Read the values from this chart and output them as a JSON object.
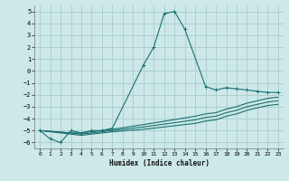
{
  "xlabel": "Humidex (Indice chaleur)",
  "bg_color": "#cce8e8",
  "grid_color": "#aacccc",
  "line_color": "#1a7070",
  "xlim": [
    -0.5,
    23.5
  ],
  "ylim": [
    -6.5,
    5.5
  ],
  "xticks": [
    0,
    1,
    2,
    3,
    4,
    5,
    6,
    7,
    8,
    9,
    10,
    11,
    12,
    13,
    14,
    15,
    16,
    17,
    18,
    19,
    20,
    21,
    22,
    23
  ],
  "yticks": [
    -6,
    -5,
    -4,
    -3,
    -2,
    -1,
    0,
    1,
    2,
    3,
    4,
    5
  ],
  "series1_x": [
    0,
    1,
    2,
    3,
    4,
    5,
    6,
    7,
    10,
    11,
    12,
    13,
    14,
    16,
    17,
    18,
    19,
    20,
    21,
    22,
    23
  ],
  "series1_y": [
    -5.0,
    -5.7,
    -6.0,
    -5.0,
    -5.2,
    -5.0,
    -5.0,
    -4.8,
    0.5,
    2.0,
    4.8,
    5.0,
    3.5,
    -1.3,
    -1.6,
    -1.4,
    -1.5,
    -1.6,
    -1.7,
    -1.8,
    -1.8
  ],
  "series2_x": [
    0,
    3,
    4,
    5,
    6,
    7,
    10,
    15,
    16,
    17,
    18,
    19,
    20,
    21,
    22,
    23
  ],
  "series2_y": [
    -5.0,
    -5.2,
    -5.2,
    -5.1,
    -5.0,
    -4.9,
    -4.5,
    -3.8,
    -3.6,
    -3.5,
    -3.2,
    -3.0,
    -2.7,
    -2.5,
    -2.3,
    -2.2
  ],
  "series3_x": [
    0,
    3,
    4,
    5,
    6,
    7,
    10,
    15,
    16,
    17,
    18,
    19,
    20,
    21,
    22,
    23
  ],
  "series3_y": [
    -5.0,
    -5.2,
    -5.3,
    -5.2,
    -5.1,
    -5.0,
    -4.7,
    -4.1,
    -3.9,
    -3.8,
    -3.5,
    -3.3,
    -3.0,
    -2.8,
    -2.6,
    -2.5
  ],
  "series4_x": [
    0,
    3,
    4,
    5,
    6,
    7,
    10,
    15,
    16,
    17,
    18,
    19,
    20,
    21,
    22,
    23
  ],
  "series4_y": [
    -5.0,
    -5.3,
    -5.4,
    -5.3,
    -5.2,
    -5.1,
    -4.9,
    -4.4,
    -4.2,
    -4.1,
    -3.8,
    -3.6,
    -3.3,
    -3.1,
    -2.9,
    -2.8
  ]
}
